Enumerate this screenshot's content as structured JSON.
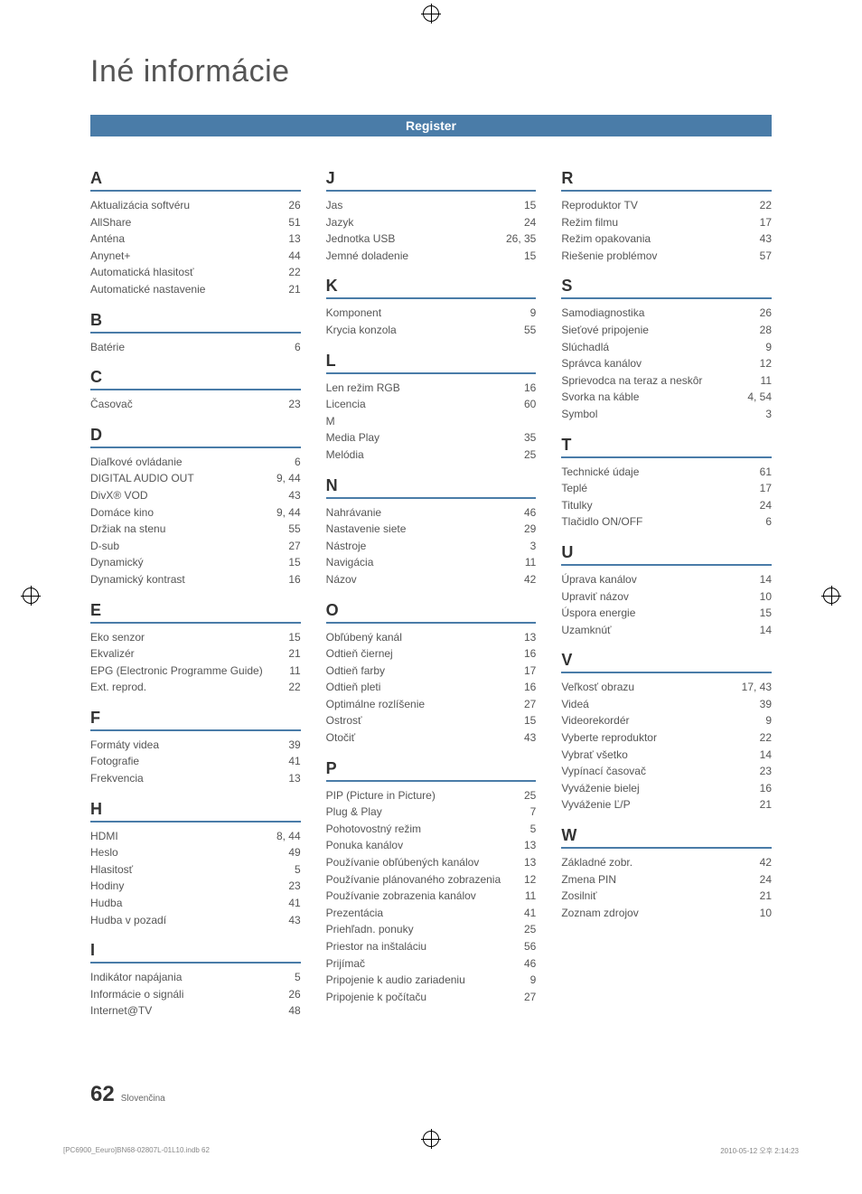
{
  "title": "Iné informácie",
  "banner": "Register",
  "columns": [
    {
      "groups": [
        {
          "letter": "A",
          "rows": [
            {
              "t": "Aktualizácia softvéru",
              "p": "26"
            },
            {
              "t": "AllShare",
              "p": "51"
            },
            {
              "t": "Anténa",
              "p": "13"
            },
            {
              "t": "Anynet+",
              "p": "44"
            },
            {
              "t": "Automatická hlasitosť",
              "p": "22"
            },
            {
              "t": "Automatické nastavenie",
              "p": "21"
            }
          ]
        },
        {
          "letter": "B",
          "rows": [
            {
              "t": "Batérie",
              "p": "6"
            }
          ]
        },
        {
          "letter": "C",
          "rows": [
            {
              "t": "Časovač",
              "p": "23"
            }
          ]
        },
        {
          "letter": "D",
          "rows": [
            {
              "t": "Diaľkové ovládanie",
              "p": "6"
            },
            {
              "t": "DIGITAL AUDIO OUT",
              "p": "9, 44"
            },
            {
              "t": "DivX® VOD",
              "p": "43"
            },
            {
              "t": "Domáce kino",
              "p": "9, 44"
            },
            {
              "t": "Držiak na stenu",
              "p": "55"
            },
            {
              "t": "D-sub",
              "p": "27"
            },
            {
              "t": "Dynamický",
              "p": "15"
            },
            {
              "t": "Dynamický kontrast",
              "p": "16"
            }
          ]
        },
        {
          "letter": "E",
          "rows": [
            {
              "t": "Eko senzor",
              "p": "15"
            },
            {
              "t": "Ekvalizér",
              "p": "21"
            },
            {
              "t": "EPG (Electronic Programme Guide)",
              "p": "11"
            },
            {
              "t": "Ext. reprod.",
              "p": "22"
            }
          ]
        },
        {
          "letter": "F",
          "rows": [
            {
              "t": "Formáty videa",
              "p": "39"
            },
            {
              "t": "Fotografie",
              "p": "41"
            },
            {
              "t": "Frekvencia",
              "p": "13"
            }
          ]
        },
        {
          "letter": "H",
          "rows": [
            {
              "t": "HDMI",
              "p": "8, 44"
            },
            {
              "t": "Heslo",
              "p": "49"
            },
            {
              "t": "Hlasitosť",
              "p": "5"
            },
            {
              "t": "Hodiny",
              "p": "23"
            },
            {
              "t": "Hudba",
              "p": "41"
            },
            {
              "t": "Hudba v pozadí",
              "p": "43"
            }
          ]
        },
        {
          "letter": "I",
          "rows": [
            {
              "t": "Indikátor napájania",
              "p": "5"
            },
            {
              "t": "Informácie o signáli",
              "p": "26"
            },
            {
              "t": "Internet@TV",
              "p": "48"
            }
          ]
        }
      ]
    },
    {
      "groups": [
        {
          "letter": "J",
          "rows": [
            {
              "t": "Jas",
              "p": "15"
            },
            {
              "t": "Jazyk",
              "p": "24"
            },
            {
              "t": "Jednotka USB",
              "p": "26, 35"
            },
            {
              "t": "Jemné doladenie",
              "p": "15"
            }
          ]
        },
        {
          "letter": "K",
          "rows": [
            {
              "t": "Komponent",
              "p": "9"
            },
            {
              "t": "Krycia konzola",
              "p": "55"
            }
          ]
        },
        {
          "letter": "L",
          "rows": [
            {
              "t": "Len režim RGB",
              "p": "16"
            },
            {
              "t": "Licencia",
              "p": "60"
            }
          ],
          "suffixLetter": "M",
          "suffixRows": [
            {
              "t": "Media Play",
              "p": "35"
            },
            {
              "t": "Melódia",
              "p": "25"
            }
          ]
        },
        {
          "letter": "N",
          "rows": [
            {
              "t": "Nahrávanie",
              "p": "46"
            },
            {
              "t": "Nastavenie siete",
              "p": "29"
            },
            {
              "t": "Nástroje",
              "p": "3"
            },
            {
              "t": "Navigácia",
              "p": "11"
            },
            {
              "t": "Názov",
              "p": "42"
            }
          ]
        },
        {
          "letter": "O",
          "rows": [
            {
              "t": "Obľúbený kanál",
              "p": "13"
            },
            {
              "t": "Odtieň čiernej",
              "p": "16"
            },
            {
              "t": "Odtieň farby",
              "p": "17"
            },
            {
              "t": "Odtieň pleti",
              "p": "16"
            },
            {
              "t": "Optimálne rozlíšenie",
              "p": "27"
            },
            {
              "t": "Ostrosť",
              "p": "15"
            },
            {
              "t": "Otočiť",
              "p": "43"
            }
          ]
        },
        {
          "letter": "P",
          "rows": [
            {
              "t": "PIP (Picture in Picture)",
              "p": "25"
            },
            {
              "t": "Plug & Play",
              "p": "7"
            },
            {
              "t": "Pohotovostný režim",
              "p": "5"
            },
            {
              "t": "Ponuka kanálov",
              "p": "13"
            },
            {
              "t": "Používanie obľúbených kanálov",
              "p": "13"
            },
            {
              "t": "Používanie plánovaného zobrazenia",
              "p": "12"
            },
            {
              "t": "Používanie zobrazenia kanálov",
              "p": "11"
            },
            {
              "t": "Prezentácia",
              "p": "41"
            },
            {
              "t": "Priehľadn. ponuky",
              "p": "25"
            },
            {
              "t": "Priestor na inštaláciu",
              "p": "56"
            },
            {
              "t": "Prijímač",
              "p": "46"
            },
            {
              "t": "Pripojenie k audio zariadeniu",
              "p": "9"
            },
            {
              "t": "Pripojenie k počítaču",
              "p": "27"
            }
          ]
        }
      ]
    },
    {
      "groups": [
        {
          "letter": "R",
          "rows": [
            {
              "t": "Reproduktor TV",
              "p": "22"
            },
            {
              "t": "Režim filmu",
              "p": "17"
            },
            {
              "t": "Režim opakovania",
              "p": "43"
            },
            {
              "t": "Riešenie problémov",
              "p": "57"
            }
          ]
        },
        {
          "letter": "S",
          "rows": [
            {
              "t": "Samodiagnostika",
              "p": "26"
            },
            {
              "t": "Sieťové pripojenie",
              "p": "28"
            },
            {
              "t": "Slúchadlá",
              "p": "9"
            },
            {
              "t": "Správca kanálov",
              "p": "12"
            },
            {
              "t": "Sprievodca na teraz a neskôr",
              "p": "11"
            },
            {
              "t": "Svorka na káble",
              "p": "4, 54"
            },
            {
              "t": "Symbol",
              "p": "3"
            }
          ]
        },
        {
          "letter": "T",
          "rows": [
            {
              "t": "Technické údaje",
              "p": "61"
            },
            {
              "t": "Teplé",
              "p": "17"
            },
            {
              "t": "Titulky",
              "p": "24"
            },
            {
              "t": "Tlačidlo ON/OFF",
              "p": "6"
            }
          ]
        },
        {
          "letter": "U",
          "rows": [
            {
              "t": "Úprava kanálov",
              "p": "14"
            },
            {
              "t": "Upraviť názov",
              "p": "10"
            },
            {
              "t": "Úspora energie",
              "p": "15"
            },
            {
              "t": "Uzamknúť",
              "p": "14"
            }
          ]
        },
        {
          "letter": "V",
          "rows": [
            {
              "t": "Veľkosť obrazu",
              "p": "17, 43"
            },
            {
              "t": "Videá",
              "p": "39"
            },
            {
              "t": "Videorekordér",
              "p": "9"
            },
            {
              "t": "Vyberte reproduktor",
              "p": "22"
            },
            {
              "t": "Vybrať všetko",
              "p": "14"
            },
            {
              "t": "Vypínací časovač",
              "p": "23"
            },
            {
              "t": "Vyváženie bielej",
              "p": "16"
            },
            {
              "t": "Vyváženie Ľ/P",
              "p": "21"
            }
          ]
        },
        {
          "letter": "W",
          "rows": [
            {
              "t": "Základné zobr.",
              "p": "42"
            },
            {
              "t": "Zmena PIN",
              "p": "24"
            },
            {
              "t": "Zosilniť",
              "p": "21"
            },
            {
              "t": "Zoznam zdrojov",
              "p": "10"
            }
          ]
        }
      ]
    }
  ],
  "footer": {
    "pagenum": "62",
    "lang": "Slovenčina"
  },
  "printline": {
    "left": "[PC6900_Eeuro]BN68-02807L-01L10.indb   62",
    "right": "2010-05-12   오후 2:14:23"
  },
  "colors": {
    "accent": "#4a7ca8",
    "text": "#555555",
    "heading": "#333333",
    "background": "#ffffff"
  }
}
